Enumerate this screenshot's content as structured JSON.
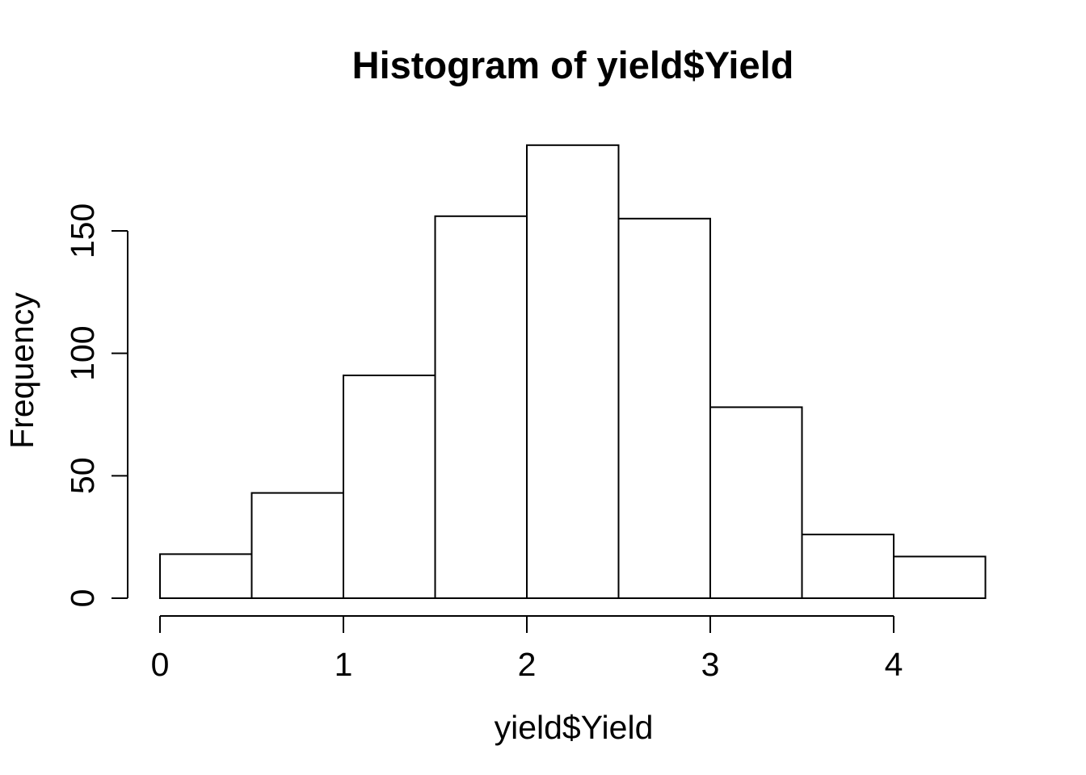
{
  "chart_data": {
    "type": "bar",
    "variant": "histogram",
    "title": "Histogram of yield$Yield",
    "xlabel": "yield$Yield",
    "ylabel": "Frequency",
    "bins": {
      "breaks": [
        0,
        0.5,
        1,
        1.5,
        2,
        2.5,
        3,
        3.5,
        4,
        4.5
      ],
      "counts": [
        18,
        43,
        91,
        156,
        185,
        155,
        78,
        26,
        17
      ]
    },
    "x_ticks": [
      0,
      1,
      2,
      3,
      4
    ],
    "y_ticks": [
      0,
      50,
      100,
      150
    ],
    "xlim": [
      0,
      4.5
    ],
    "ylim": [
      0,
      185
    ],
    "grid": false,
    "legend": null,
    "bar_fill": "#ffffff",
    "bar_stroke": "#000000",
    "axis_color": "#000000",
    "background": "#ffffff"
  }
}
